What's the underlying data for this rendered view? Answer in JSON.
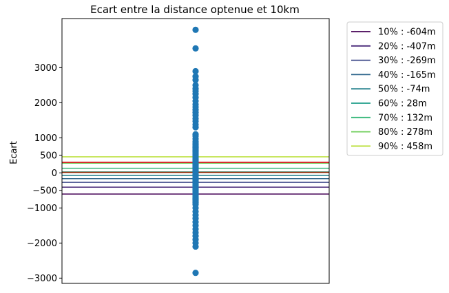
{
  "chart_data": {
    "type": "scatter",
    "title": "Ecart entre la distance optenue et 10km",
    "xlabel": "",
    "ylabel": "Ecart",
    "ylim": [
      -3150,
      4400
    ],
    "yticks": [
      3000,
      2000,
      1000,
      500,
      0,
      -500,
      -1000,
      -2000,
      -3000
    ],
    "ytick_labels": [
      "3000",
      "2000",
      "1000",
      "500",
      "0",
      "−500",
      "−1000",
      "−2000",
      "−3000"
    ],
    "xticks_visible": false,
    "grid": false,
    "legend_position": "outside-right",
    "point_color": "#1f77b4",
    "points_y": [
      4080,
      3550,
      2900,
      2750,
      2650,
      2500,
      2400,
      2330,
      2250,
      2150,
      2050,
      1950,
      1880,
      1800,
      1720,
      1640,
      1550,
      1470,
      1380,
      1300,
      1100,
      1050,
      970,
      900,
      850,
      800,
      760,
      720,
      680,
      640,
      600,
      560,
      520,
      480,
      440,
      400,
      360,
      320,
      280,
      240,
      200,
      160,
      120,
      80,
      40,
      0,
      -40,
      -80,
      -120,
      -160,
      -200,
      -240,
      -280,
      -320,
      -360,
      -400,
      -440,
      -480,
      -520,
      -560,
      -600,
      -640,
      -680,
      -720,
      -760,
      -800,
      -850,
      -900,
      -1000,
      -1100,
      -1200,
      -1300,
      -1400,
      -1500,
      -1600,
      -1700,
      -1800,
      -1900,
      -2000,
      -2100,
      -2850
    ],
    "hlines": [
      {
        "label": "10% : -604m",
        "y": -604,
        "color": "#440154"
      },
      {
        "label": "20% : -407m",
        "y": -407,
        "color": "#482878"
      },
      {
        "label": "30% : -269m",
        "y": -269,
        "color": "#3e4989"
      },
      {
        "label": "40% : -165m",
        "y": -165,
        "color": "#31688e"
      },
      {
        "label": "50% : -74m",
        "y": -74,
        "color": "#26828e"
      },
      {
        "label": "60% : 28m",
        "y": 28,
        "color": "#1f9e89"
      },
      {
        "label": "70% : 132m",
        "y": 132,
        "color": "#35b779"
      },
      {
        "label": "80% : 278m",
        "y": 278,
        "color": "#6ece58"
      },
      {
        "label": "90% : 458m",
        "y": 458,
        "color": "#b5de2b"
      }
    ],
    "extra_hlines": [
      {
        "y": 300,
        "color": "#d62728"
      },
      {
        "y": 15,
        "color": "#8b2500"
      }
    ]
  }
}
